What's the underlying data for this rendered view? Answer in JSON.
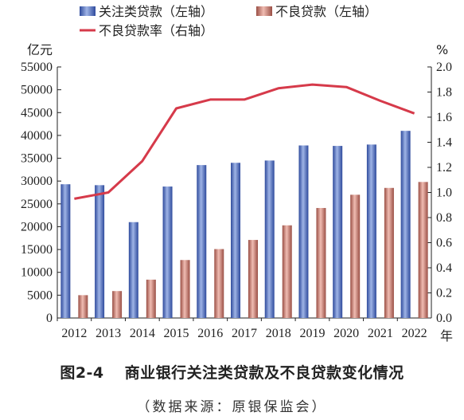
{
  "chart_data": {
    "type": "bar",
    "categories": [
      "2012",
      "2013",
      "2014",
      "2015",
      "2016",
      "2017",
      "2018",
      "2019",
      "2020",
      "2021",
      "2022"
    ],
    "x_unit": "年",
    "left_axis": {
      "unit": "亿元",
      "ylim": [
        0,
        55000
      ],
      "ticks": [
        0,
        5000,
        10000,
        15000,
        20000,
        25000,
        30000,
        35000,
        40000,
        45000,
        50000,
        55000
      ]
    },
    "right_axis": {
      "unit": "%",
      "ylim": [
        0,
        2.0
      ],
      "ticks": [
        "0.0",
        "0.2",
        "0.4",
        "0.6",
        "0.8",
        "1.0",
        "1.2",
        "1.4",
        "1.6",
        "1.8",
        "2.0"
      ]
    },
    "series": [
      {
        "name": "关注类贷款（左轴）",
        "type": "bar",
        "axis": "left",
        "color": "#4a66b8",
        "values": [
          29300,
          29100,
          21000,
          28800,
          33500,
          34000,
          34500,
          37800,
          37700,
          38000,
          41000
        ]
      },
      {
        "name": "不良贷款（左轴）",
        "type": "bar",
        "axis": "left",
        "color": "#b86a5c",
        "values": [
          5000,
          5900,
          8400,
          12700,
          15100,
          17100,
          20300,
          24100,
          27000,
          28500,
          29800
        ]
      },
      {
        "name": "不良贷款率（右轴）",
        "type": "line",
        "axis": "right",
        "color": "#d63a4a",
        "values": [
          0.95,
          1.0,
          1.25,
          1.67,
          1.74,
          1.74,
          1.83,
          1.86,
          1.84,
          1.73,
          1.63
        ]
      }
    ],
    "grid": false,
    "legend_placement": "top"
  },
  "caption": {
    "number": "图2-4",
    "title": "商业银行关注类贷款及不良贷款变化情况"
  },
  "source": "（数据来源：原银保监会）"
}
